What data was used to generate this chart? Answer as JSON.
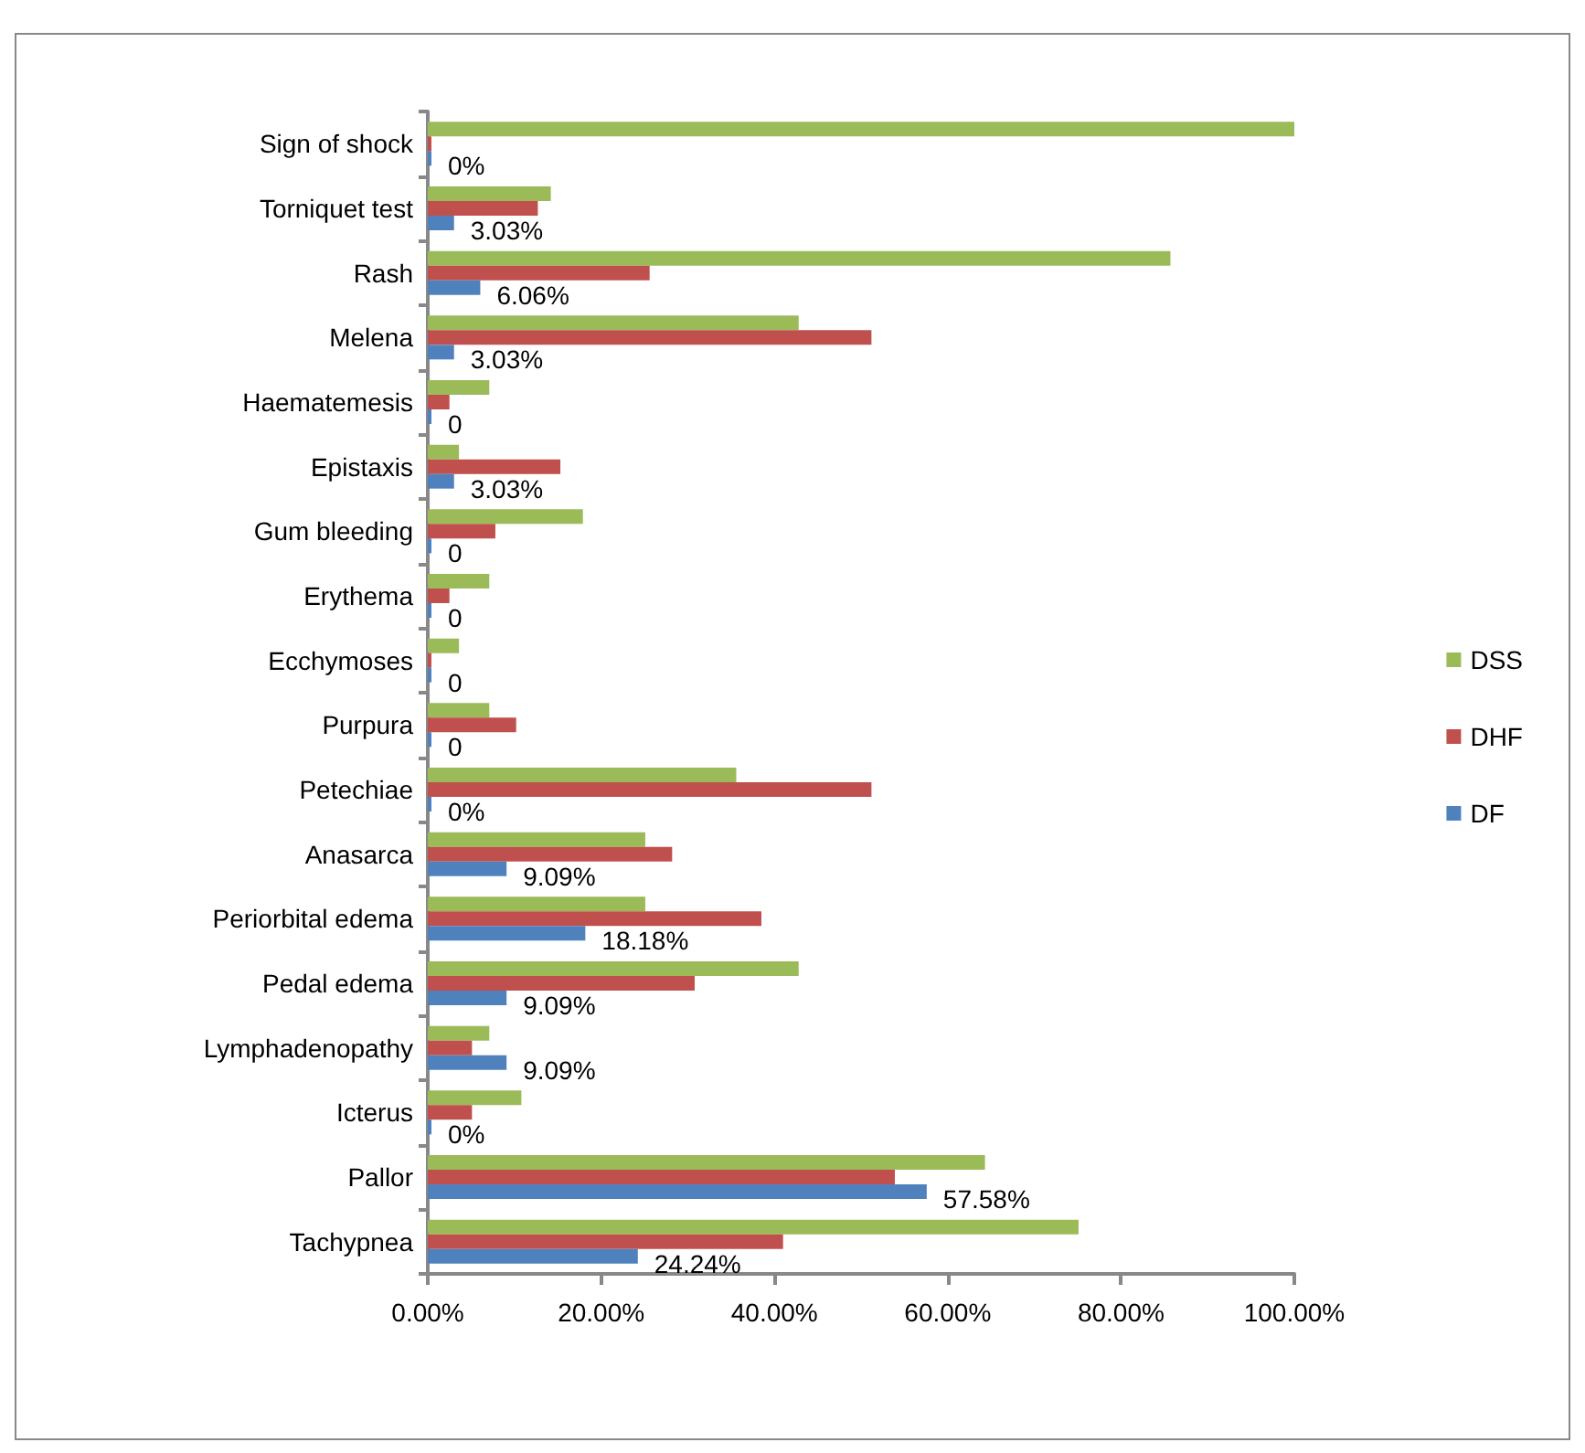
{
  "chart_data": {
    "type": "bar",
    "orientation": "horizontal",
    "categories": [
      "Sign of shock",
      "Torniquet test",
      "Rash",
      "Melena",
      "Haematemesis",
      "Epistaxis",
      "Gum bleeding",
      "Erythema",
      "Ecchymoses",
      "Purpura",
      "Petechiae",
      "Anasarca",
      "Periorbital edema",
      "Pedal edema",
      "Lymphadenopathy",
      "Icterus",
      "Pallor",
      "Tachypnea"
    ],
    "series": [
      {
        "name": "DSS",
        "color": "#9bbb59",
        "values": [
          100,
          14.2,
          85.7,
          42.8,
          7.1,
          3.6,
          17.9,
          7.1,
          3.6,
          7.1,
          35.6,
          25.1,
          25.1,
          42.8,
          7.1,
          10.8,
          64.3,
          75.1
        ]
      },
      {
        "name": "DHF",
        "color": "#c0504d",
        "values": [
          0,
          12.7,
          25.6,
          51.2,
          2.5,
          15.3,
          7.8,
          2.5,
          0,
          10.2,
          51.2,
          28.2,
          38.5,
          30.8,
          5.1,
          5.1,
          53.9,
          41.0
        ]
      },
      {
        "name": "DF",
        "color": "#4f81bd",
        "values": [
          0,
          3.03,
          6.06,
          3.03,
          0,
          3.03,
          0,
          0,
          0,
          0,
          0,
          9.09,
          18.18,
          9.09,
          9.09,
          0,
          57.58,
          24.24
        ],
        "value_labels": [
          "0%",
          "3.03%",
          "6.06%",
          "3.03%",
          "0",
          "3.03%",
          "0",
          "0",
          "0",
          "0",
          "0%",
          "9.09%",
          "18.18%",
          "9.09%",
          "9.09%",
          "0%",
          "57.58%",
          "24.24%"
        ]
      }
    ],
    "xlim": [
      0,
      100
    ],
    "xticks": [
      {
        "value": 0,
        "label": "0.00%"
      },
      {
        "value": 20,
        "label": "20.00%"
      },
      {
        "value": 40,
        "label": "40.00%"
      },
      {
        "value": 60,
        "label": "60.00%"
      },
      {
        "value": 80,
        "label": "80.00%"
      },
      {
        "value": 100,
        "label": "100.00%"
      }
    ],
    "grid": false,
    "legend": "right"
  }
}
